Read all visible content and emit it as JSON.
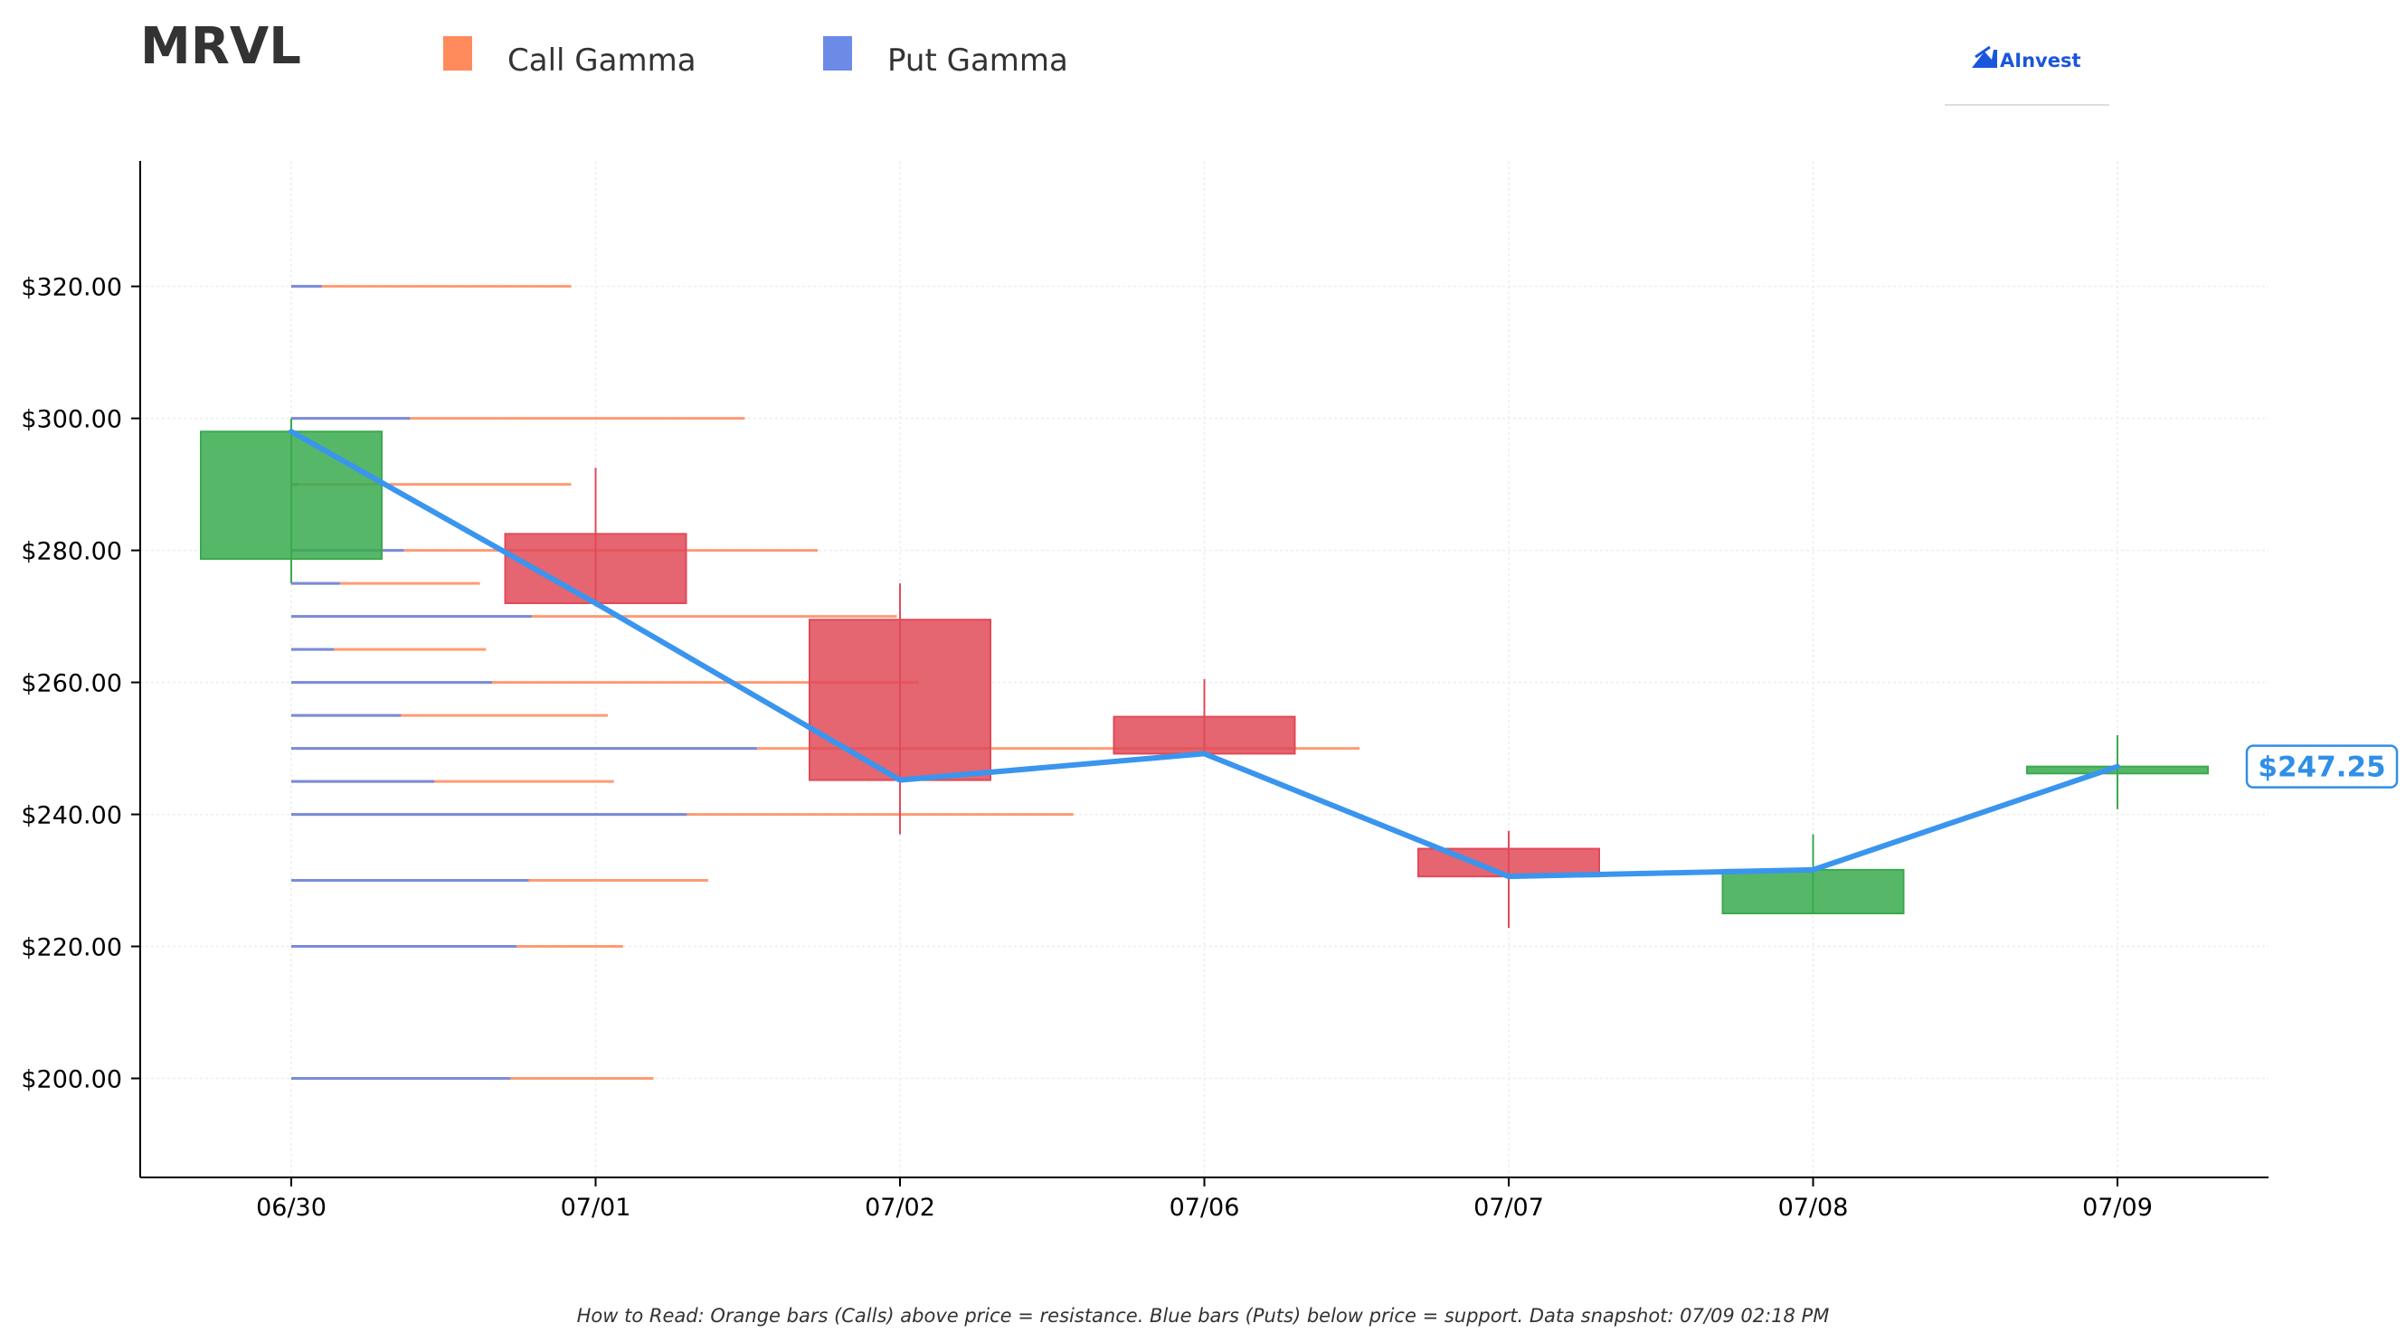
{
  "header": {
    "ticker": "MRVL",
    "logo_text": "AInvest"
  },
  "colors": {
    "call": "#ff8a5c",
    "put": "#6b8be6",
    "up": "#3aaa4e",
    "down": "#e04a58",
    "price_line": "#3a95ee",
    "axis": "#000000",
    "grid": "#eeeeee"
  },
  "icons": {
    "logo": "ainvest-logo-icon"
  },
  "footer": "How to Read: Orange bars (Calls) above price = resistance. Blue bars (Puts) below price = support. Data snapshot: 07/09 02:18 PM",
  "chart_data": {
    "type": "candlestick",
    "title": "MRVL",
    "legend": {
      "placement": "top-left",
      "entries": [
        "Call Gamma",
        "Put Gamma"
      ]
    },
    "grid": true,
    "x_categories": [
      "06/30",
      "07/01",
      "07/02",
      "07/06",
      "07/07",
      "07/08",
      "07/09"
    ],
    "ylim": [
      185,
      339
    ],
    "y_ticks": [
      200,
      220,
      240,
      260,
      280,
      300,
      320
    ],
    "y_tick_labels": [
      "$200.00",
      "$220.00",
      "$240.00",
      "$260.00",
      "$280.00",
      "$300.00",
      "$320.00"
    ],
    "candles": [
      {
        "date": "06/30",
        "open": 278.7,
        "high": 300.0,
        "low": 275.0,
        "close": 298.0
      },
      {
        "date": "07/01",
        "open": 282.5,
        "high": 292.5,
        "low": 271.5,
        "close": 272.0
      },
      {
        "date": "07/02",
        "open": 269.5,
        "high": 275.0,
        "low": 237.0,
        "close": 245.2
      },
      {
        "date": "07/06",
        "open": 254.8,
        "high": 260.5,
        "low": 249.0,
        "close": 249.2
      },
      {
        "date": "07/07",
        "open": 234.8,
        "high": 237.5,
        "low": 222.8,
        "close": 230.6
      },
      {
        "date": "07/08",
        "open": 225.0,
        "high": 237.0,
        "low": 225.0,
        "close": 231.6
      },
      {
        "date": "07/09",
        "open": 246.2,
        "high": 252.0,
        "low": 240.8,
        "close": 247.25
      }
    ],
    "price_line": {
      "values": [
        298.0,
        272.0,
        245.2,
        249.2,
        230.6,
        231.6,
        247.25
      ],
      "last_label": "$247.25"
    },
    "gamma_levels": {
      "x_domain": [
        0,
        3.5
      ],
      "levels": [
        {
          "strike": 320,
          "put": 0.1,
          "total": 0.92
        },
        {
          "strike": 300,
          "put": 0.39,
          "total": 1.49
        },
        {
          "strike": 290,
          "put": 0.02,
          "total": 0.92
        },
        {
          "strike": 280,
          "put": 0.37,
          "total": 1.73
        },
        {
          "strike": 275,
          "put": 0.16,
          "total": 0.62
        },
        {
          "strike": 270,
          "put": 0.79,
          "total": 1.99
        },
        {
          "strike": 265,
          "put": 0.14,
          "total": 0.64
        },
        {
          "strike": 260,
          "put": 0.66,
          "total": 2.06
        },
        {
          "strike": 255,
          "put": 0.36,
          "total": 1.04
        },
        {
          "strike": 250,
          "put": 1.53,
          "total": 3.51
        },
        {
          "strike": 245,
          "put": 0.47,
          "total": 1.06
        },
        {
          "strike": 240,
          "put": 1.3,
          "total": 2.57
        },
        {
          "strike": 230,
          "put": 0.78,
          "total": 1.37
        },
        {
          "strike": 220,
          "put": 0.74,
          "total": 1.09
        },
        {
          "strike": 200,
          "put": 0.72,
          "total": 1.19
        }
      ]
    }
  }
}
